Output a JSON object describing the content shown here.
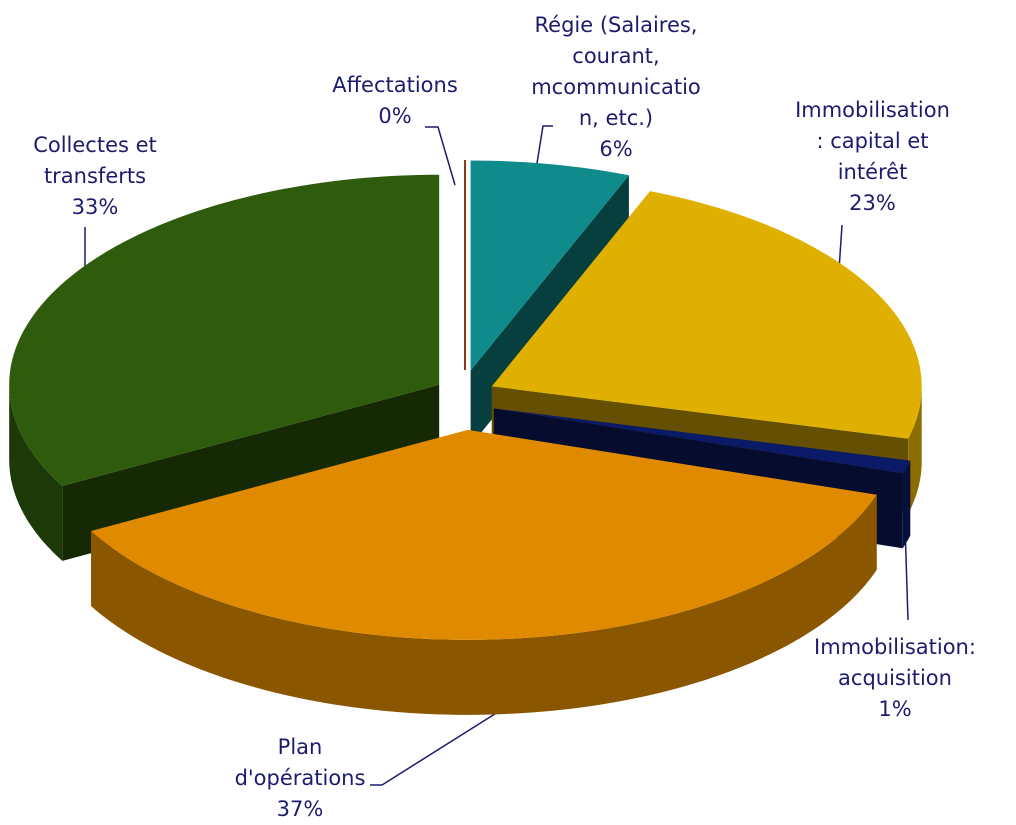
{
  "chart_data": {
    "type": "pie3d",
    "categories": [
      "Affectations",
      "Régie (Salaires, courant, mcommunication, etc.)",
      "Immobilisation : capital et intérêt",
      "Immobilisation: acquisition",
      "Plan d'opérations",
      "Collectes et transferts"
    ],
    "values": [
      0,
      6,
      23,
      1,
      37,
      33
    ],
    "value_labels": [
      "0%",
      "6%",
      "23%",
      "1%",
      "37%",
      "33%"
    ],
    "colors": [
      "#8b3a1a",
      "#0f8b8b",
      "#e0b000",
      "#0a1a66",
      "#e08a00",
      "#2f5c0c"
    ]
  }
}
